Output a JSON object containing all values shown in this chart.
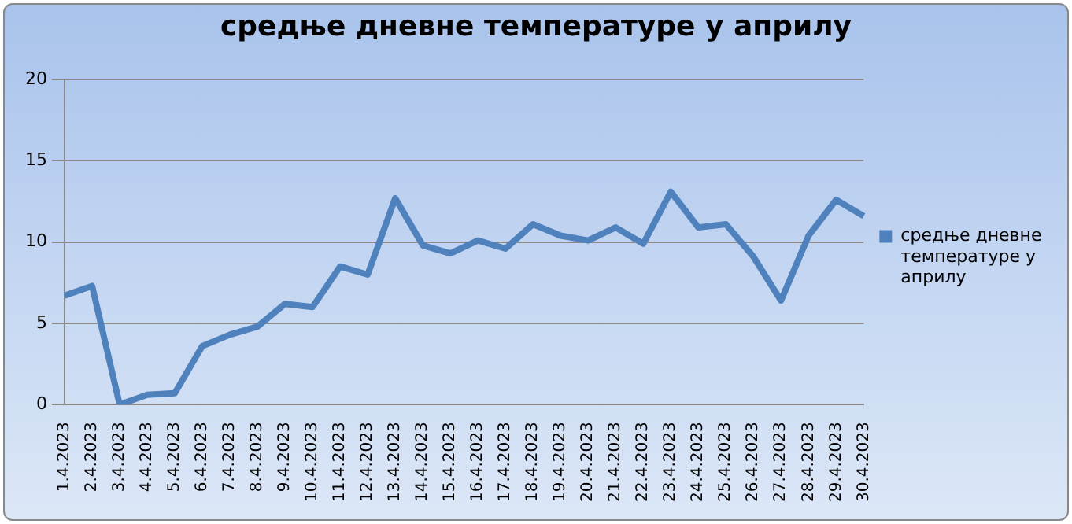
{
  "chart_data": {
    "type": "line",
    "title": "средње дневне температуре у априлу",
    "categories": [
      "1.4.2023",
      "2.4.2023",
      "3.4.2023",
      "4.4.2023",
      "5.4.2023",
      "6.4.2023",
      "7.4.2023",
      "8.4.2023",
      "9.4.2023",
      "10.4.2023",
      "11.4.2023",
      "12.4.2023",
      "13.4.2023",
      "14.4.2023",
      "15.4.2023",
      "16.4.2023",
      "17.4.2023",
      "18.4.2023",
      "19.4.2023",
      "20.4.2023",
      "21.4.2023",
      "22.4.2023",
      "23.4.2023",
      "24.4.2023",
      "25.4.2023",
      "26.4.2023",
      "27.4.2023",
      "28.4.2023",
      "29.4.2023",
      "30.4.2023"
    ],
    "series": [
      {
        "name": "средње дневне температуре у априлу",
        "color": "#4f81bd",
        "values": [
          6.7,
          7.3,
          0,
          0.6,
          0.7,
          3.6,
          4.3,
          4.8,
          6.2,
          6,
          8.5,
          8,
          12.7,
          9.8,
          9.3,
          10.1,
          9.6,
          11.1,
          10.4,
          10.1,
          10.9,
          9.9,
          13.1,
          10.9,
          11.1,
          9.1,
          6.4,
          10.4,
          12.6,
          11.6
        ]
      }
    ],
    "ylim": [
      0,
      20
    ],
    "yticks": [
      0,
      5,
      10,
      15,
      20
    ],
    "grid": "y",
    "legend": "right",
    "marker": "none",
    "line_style": "solid"
  }
}
